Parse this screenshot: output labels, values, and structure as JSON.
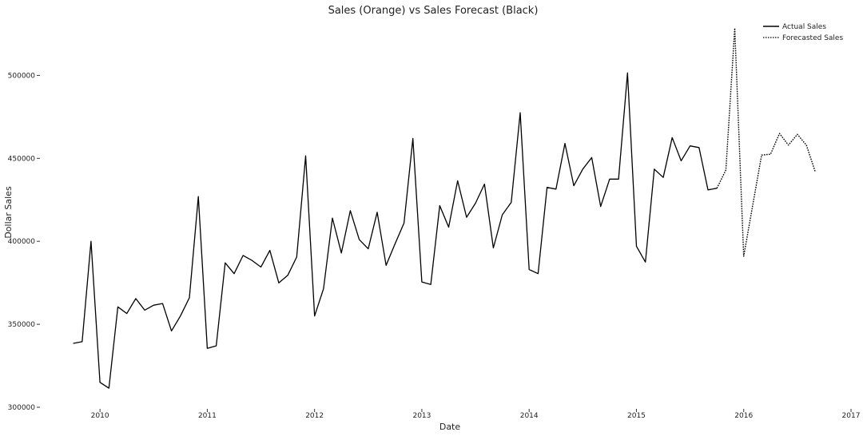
{
  "chart_data": {
    "type": "line",
    "title": "Sales (Orange) vs Sales Forecast (Black)",
    "xlabel": "Date",
    "ylabel": "Dollar Sales",
    "x_ticks": [
      "2010",
      "2011",
      "2012",
      "2013",
      "2014",
      "2015",
      "2016",
      "2017"
    ],
    "y_ticks": [
      300000,
      350000,
      400000,
      450000,
      500000
    ],
    "y_tick_labels": [
      "300000",
      "350000",
      "400000",
      "450000",
      "500000"
    ],
    "xlim": [
      "2009-07",
      "2017-01"
    ],
    "ylim": [
      300000,
      531000
    ],
    "grid": false,
    "legend_position": "top-right",
    "series": [
      {
        "name": "Actual Sales",
        "style": "solid",
        "color": "#000000",
        "x": [
          "2009-10",
          "2009-11",
          "2009-12",
          "2010-01",
          "2010-02",
          "2010-03",
          "2010-04",
          "2010-05",
          "2010-06",
          "2010-07",
          "2010-08",
          "2010-09",
          "2010-10",
          "2010-11",
          "2010-12",
          "2011-01",
          "2011-02",
          "2011-03",
          "2011-04",
          "2011-05",
          "2011-06",
          "2011-07",
          "2011-08",
          "2011-09",
          "2011-10",
          "2011-11",
          "2011-12",
          "2012-01",
          "2012-02",
          "2012-03",
          "2012-04",
          "2012-05",
          "2012-06",
          "2012-07",
          "2012-08",
          "2012-09",
          "2012-10",
          "2012-11",
          "2012-12",
          "2013-01",
          "2013-02",
          "2013-03",
          "2013-04",
          "2013-05",
          "2013-06",
          "2013-07",
          "2013-08",
          "2013-09",
          "2013-10",
          "2013-11",
          "2013-12",
          "2014-01",
          "2014-02",
          "2014-03",
          "2014-04",
          "2014-05",
          "2014-06",
          "2014-07",
          "2014-08",
          "2014-09",
          "2014-10",
          "2014-11",
          "2014-12",
          "2015-01",
          "2015-02",
          "2015-03",
          "2015-04",
          "2015-05",
          "2015-06",
          "2015-07",
          "2015-08",
          "2015-09",
          "2015-10"
        ],
        "values": [
          338500,
          339500,
          400000,
          315000,
          311500,
          360500,
          356500,
          365500,
          358500,
          361500,
          362500,
          346000,
          355000,
          366000,
          427000,
          335500,
          337000,
          387000,
          380500,
          391500,
          388500,
          384500,
          394500,
          375000,
          379500,
          390500,
          451500,
          355000,
          371500,
          414000,
          393000,
          418500,
          401000,
          395500,
          417500,
          385500,
          398500,
          411000,
          462000,
          375500,
          374000,
          421500,
          408500,
          436500,
          414500,
          423000,
          434500,
          396000,
          416000,
          423500,
          477500,
          383000,
          380500,
          432500,
          431500,
          459000,
          433500,
          443500,
          450500,
          421000,
          437500,
          437500,
          501500,
          397000,
          387500,
          443500,
          438500,
          462500,
          448500,
          457500,
          456500,
          431000,
          432000
        ]
      },
      {
        "name": "Forecasted Sales",
        "style": "dotted",
        "color": "#000000",
        "x": [
          "2015-10",
          "2015-11",
          "2015-12",
          "2016-01",
          "2016-02",
          "2016-03",
          "2016-04",
          "2016-05",
          "2016-06",
          "2016-07",
          "2016-08",
          "2016-09"
        ],
        "values": [
          432000,
          443000,
          528500,
          391000,
          421500,
          452000,
          452500,
          465000,
          458000,
          464500,
          458000,
          442000
        ]
      }
    ]
  }
}
